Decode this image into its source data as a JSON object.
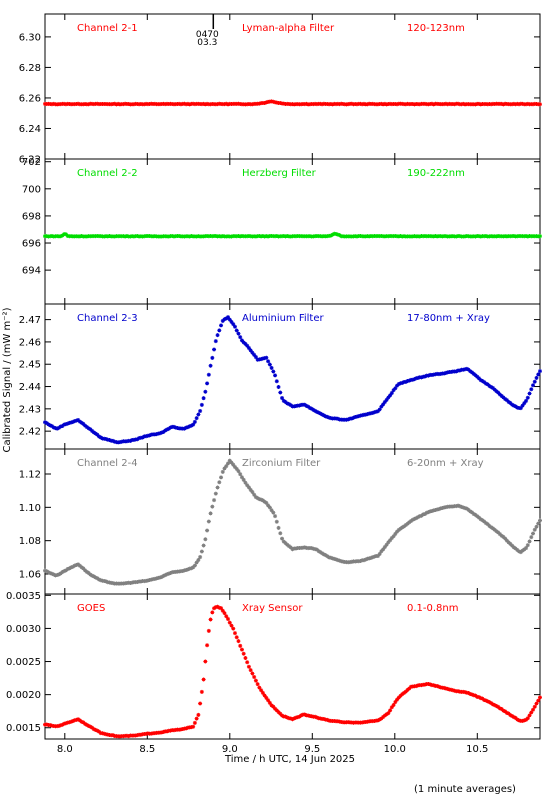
{
  "figure": {
    "ylabel": "Calibrated Signal / (mW m⁻²)",
    "xlabel": "Time / h UTC, 14 Jun 2025",
    "footnote": "(1 minute averages)",
    "x_range": [
      7.88,
      10.88
    ],
    "x_ticks": [
      8.0,
      8.5,
      9.0,
      9.5,
      10.0,
      10.5
    ],
    "x_tick_labels": [
      "8.0",
      "8.5",
      "9.0",
      "9.5",
      "10.0",
      "10.5"
    ],
    "marker_label_line1": "0470",
    "marker_label_line2": "03.3",
    "marker_x": 8.9
  },
  "chart_data": [
    {
      "type": "scatter",
      "name": "Channel 2-1",
      "filter": "Lyman-alpha Filter",
      "band": "120-123nm",
      "color": "#ff0000",
      "ylim": [
        6.22,
        6.315
      ],
      "y_ticks": [
        6.22,
        6.24,
        6.26,
        6.28,
        6.3
      ],
      "y_tick_labels": [
        "6.22",
        "6.24",
        "6.26",
        "6.28",
        "6.30"
      ],
      "x": [
        7.88,
        8.5,
        9.15,
        9.22,
        9.25,
        9.28,
        9.35,
        10.0,
        10.88
      ],
      "y": [
        6.256,
        6.256,
        6.256,
        6.257,
        6.258,
        6.257,
        6.256,
        6.256,
        6.256
      ]
    },
    {
      "type": "scatter",
      "name": "Channel 2-2",
      "filter": "Herzberg Filter",
      "band": "190-222nm",
      "color": "#00dd00",
      "ylim": [
        691.5,
        702.2
      ],
      "y_ticks": [
        694,
        696,
        698,
        700,
        702
      ],
      "y_tick_labels": [
        "694",
        "696",
        "698",
        "700",
        "702"
      ],
      "x": [
        7.88,
        7.98,
        8.0,
        8.02,
        8.5,
        9.6,
        9.64,
        9.68,
        10.88
      ],
      "y": [
        696.5,
        696.5,
        696.7,
        696.5,
        696.5,
        696.5,
        696.7,
        696.5,
        696.5
      ]
    },
    {
      "type": "scatter",
      "name": "Channel 2-3",
      "filter": "Aluminium Filter",
      "band": "17-80nm + Xray",
      "color": "#0000cc",
      "ylim": [
        2.412,
        2.477
      ],
      "y_ticks": [
        2.42,
        2.43,
        2.44,
        2.45,
        2.46,
        2.47
      ],
      "y_tick_labels": [
        "2.42",
        "2.43",
        "2.44",
        "2.45",
        "2.46",
        "2.47"
      ],
      "x": [
        7.88,
        7.95,
        8.0,
        8.08,
        8.15,
        8.22,
        8.32,
        8.42,
        8.5,
        8.58,
        8.65,
        8.72,
        8.78,
        8.82,
        8.85,
        8.88,
        8.92,
        8.96,
        8.99,
        9.03,
        9.07,
        9.12,
        9.17,
        9.22,
        9.27,
        9.32,
        9.38,
        9.45,
        9.52,
        9.6,
        9.7,
        9.8,
        9.9,
        9.96,
        10.02,
        10.1,
        10.2,
        10.3,
        10.38,
        10.44,
        10.52,
        10.6,
        10.66,
        10.71,
        10.76,
        10.8,
        10.84,
        10.88
      ],
      "y": [
        2.424,
        2.421,
        2.423,
        2.425,
        2.421,
        2.417,
        2.415,
        2.416,
        2.418,
        2.419,
        2.422,
        2.421,
        2.423,
        2.429,
        2.437,
        2.448,
        2.462,
        2.47,
        2.471,
        2.467,
        2.461,
        2.457,
        2.452,
        2.453,
        2.446,
        2.434,
        2.431,
        2.432,
        2.429,
        2.426,
        2.425,
        2.427,
        2.429,
        2.435,
        2.441,
        2.443,
        2.445,
        2.446,
        2.447,
        2.448,
        2.443,
        2.439,
        2.435,
        2.432,
        2.43,
        2.434,
        2.441,
        2.447
      ]
    },
    {
      "type": "scatter",
      "name": "Channel 2-4",
      "filter": "Zirconium Filter",
      "band": "6-20nm + Xray",
      "color": "#808080",
      "ylim": [
        1.048,
        1.135
      ],
      "y_ticks": [
        1.06,
        1.08,
        1.1,
        1.12
      ],
      "y_tick_labels": [
        "1.06",
        "1.08",
        "1.10",
        "1.12"
      ],
      "x": [
        7.88,
        7.95,
        8.0,
        8.08,
        8.15,
        8.22,
        8.32,
        8.42,
        8.5,
        8.58,
        8.65,
        8.72,
        8.78,
        8.82,
        8.85,
        8.88,
        8.92,
        8.96,
        9.0,
        9.05,
        9.1,
        9.16,
        9.22,
        9.27,
        9.32,
        9.38,
        9.45,
        9.52,
        9.6,
        9.7,
        9.8,
        9.9,
        9.96,
        10.02,
        10.1,
        10.2,
        10.3,
        10.38,
        10.44,
        10.52,
        10.6,
        10.66,
        10.71,
        10.76,
        10.8,
        10.84,
        10.88
      ],
      "y": [
        1.062,
        1.059,
        1.062,
        1.066,
        1.06,
        1.056,
        1.054,
        1.055,
        1.056,
        1.058,
        1.061,
        1.062,
        1.064,
        1.07,
        1.08,
        1.095,
        1.11,
        1.122,
        1.128,
        1.122,
        1.114,
        1.106,
        1.103,
        1.096,
        1.08,
        1.075,
        1.076,
        1.075,
        1.07,
        1.067,
        1.068,
        1.071,
        1.079,
        1.086,
        1.092,
        1.097,
        1.1,
        1.101,
        1.099,
        1.093,
        1.087,
        1.082,
        1.077,
        1.073,
        1.076,
        1.085,
        1.092
      ]
    },
    {
      "type": "scatter",
      "name": "GOES",
      "filter": "Xray Sensor",
      "band": "0.1-0.8nm",
      "color": "#ff0000",
      "ylim": [
        0.00133,
        0.00352
      ],
      "y_ticks": [
        0.0015,
        0.002,
        0.0025,
        0.003,
        0.0035
      ],
      "y_tick_labels": [
        "0.0015",
        "0.0020",
        "0.0025",
        "0.0030",
        "0.0035"
      ],
      "x": [
        7.88,
        7.95,
        8.0,
        8.08,
        8.15,
        8.22,
        8.32,
        8.42,
        8.5,
        8.58,
        8.65,
        8.72,
        8.78,
        8.81,
        8.84,
        8.86,
        8.88,
        8.9,
        8.92,
        8.95,
        8.98,
        9.02,
        9.07,
        9.12,
        9.18,
        9.25,
        9.32,
        9.38,
        9.45,
        9.52,
        9.6,
        9.7,
        9.8,
        9.9,
        9.96,
        10.02,
        10.1,
        10.2,
        10.3,
        10.38,
        10.44,
        10.52,
        10.6,
        10.66,
        10.71,
        10.76,
        10.8,
        10.84,
        10.88
      ],
      "y": [
        0.00155,
        0.00152,
        0.00156,
        0.00163,
        0.00152,
        0.00142,
        0.00137,
        0.00138,
        0.00141,
        0.00143,
        0.00146,
        0.00148,
        0.00152,
        0.0017,
        0.0022,
        0.0027,
        0.0031,
        0.0033,
        0.00333,
        0.0033,
        0.00318,
        0.003,
        0.0027,
        0.0024,
        0.0021,
        0.00185,
        0.00168,
        0.00163,
        0.0017,
        0.00166,
        0.00161,
        0.00158,
        0.00158,
        0.00161,
        0.00172,
        0.00195,
        0.00212,
        0.00216,
        0.0021,
        0.00205,
        0.00203,
        0.00195,
        0.00185,
        0.00176,
        0.00168,
        0.0016,
        0.00162,
        0.00178,
        0.00196
      ]
    }
  ]
}
